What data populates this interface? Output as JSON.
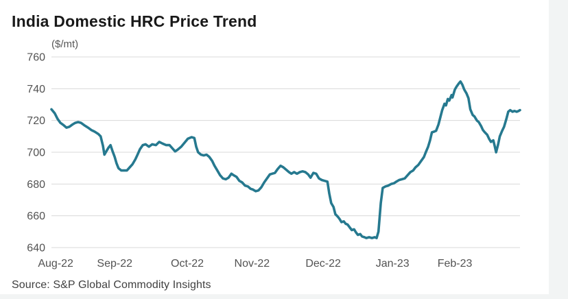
{
  "header": {
    "title": "India Domestic HRC Price Trend",
    "unit_label": "($/mt)"
  },
  "footer": {
    "source": "Source: S&P Global Commodity Insights"
  },
  "colors": {
    "line": "#26798F",
    "grid": "#d8d8d8",
    "title_text": "#191919",
    "axis_text": "#525252",
    "background": "#ffffff",
    "page_margin": "#f2f4f4"
  },
  "chart_data": {
    "type": "line",
    "title": "India Domestic HRC Price Trend",
    "ylabel": "($/mt)",
    "ylim": [
      640,
      760
    ],
    "ytick_interval": 20,
    "yticks": [
      760,
      740,
      720,
      700,
      680,
      660,
      640
    ],
    "grid": "horizontal-only",
    "legend": "none",
    "line_color": "#26798F",
    "x_unit": "fraction-of-axis",
    "xticks": [
      {
        "label": "Aug-22",
        "pos": 0.009
      },
      {
        "label": "Sep-22",
        "pos": 0.135
      },
      {
        "label": "Oct-22",
        "pos": 0.29
      },
      {
        "label": "Nov-22",
        "pos": 0.428
      },
      {
        "label": "Dec-22",
        "pos": 0.58
      },
      {
        "label": "Jan-23",
        "pos": 0.728
      },
      {
        "label": "Feb-23",
        "pos": 0.861
      }
    ],
    "series": [
      {
        "name": "India domestic HRC price ($/mt)",
        "points": [
          [
            0.0,
            727
          ],
          [
            0.007,
            724.5
          ],
          [
            0.013,
            721
          ],
          [
            0.019,
            718.5
          ],
          [
            0.026,
            717
          ],
          [
            0.032,
            715.5
          ],
          [
            0.038,
            716
          ],
          [
            0.045,
            717.5
          ],
          [
            0.051,
            718.5
          ],
          [
            0.057,
            719
          ],
          [
            0.063,
            718.5
          ],
          [
            0.07,
            717
          ],
          [
            0.078,
            715.5
          ],
          [
            0.085,
            714
          ],
          [
            0.092,
            713
          ],
          [
            0.1,
            711.5
          ],
          [
            0.105,
            710
          ],
          [
            0.11,
            704
          ],
          [
            0.113,
            698.5
          ],
          [
            0.117,
            700.5
          ],
          [
            0.122,
            703
          ],
          [
            0.126,
            704.5
          ],
          [
            0.13,
            701
          ],
          [
            0.135,
            697
          ],
          [
            0.139,
            693
          ],
          [
            0.143,
            690
          ],
          [
            0.149,
            688.5
          ],
          [
            0.155,
            688.5
          ],
          [
            0.161,
            688.5
          ],
          [
            0.167,
            690.5
          ],
          [
            0.173,
            692.5
          ],
          [
            0.179,
            695.5
          ],
          [
            0.183,
            698
          ],
          [
            0.189,
            702
          ],
          [
            0.195,
            704.5
          ],
          [
            0.201,
            705
          ],
          [
            0.208,
            703.5
          ],
          [
            0.215,
            705
          ],
          [
            0.223,
            704.5
          ],
          [
            0.23,
            706.5
          ],
          [
            0.237,
            705.5
          ],
          [
            0.245,
            704.5
          ],
          [
            0.252,
            704.5
          ],
          [
            0.258,
            702.5
          ],
          [
            0.264,
            700.5
          ],
          [
            0.269,
            701.5
          ],
          [
            0.277,
            703.5
          ],
          [
            0.284,
            706
          ],
          [
            0.291,
            708.5
          ],
          [
            0.299,
            709.5
          ],
          [
            0.305,
            709
          ],
          [
            0.309,
            703.5
          ],
          [
            0.313,
            700
          ],
          [
            0.319,
            698.5
          ],
          [
            0.325,
            698
          ],
          [
            0.331,
            698.5
          ],
          [
            0.337,
            697
          ],
          [
            0.343,
            694.5
          ],
          [
            0.348,
            691.5
          ],
          [
            0.354,
            688.5
          ],
          [
            0.36,
            685.5
          ],
          [
            0.366,
            683.5
          ],
          [
            0.372,
            683
          ],
          [
            0.378,
            684
          ],
          [
            0.384,
            686.5
          ],
          [
            0.389,
            685.5
          ],
          [
            0.395,
            684.5
          ],
          [
            0.401,
            682
          ],
          [
            0.407,
            681
          ],
          [
            0.413,
            679
          ],
          [
            0.419,
            678.5
          ],
          [
            0.425,
            677
          ],
          [
            0.43,
            676.5
          ],
          [
            0.436,
            675.5
          ],
          [
            0.442,
            676
          ],
          [
            0.448,
            678
          ],
          [
            0.454,
            681
          ],
          [
            0.46,
            683.5
          ],
          [
            0.466,
            686
          ],
          [
            0.471,
            686.5
          ],
          [
            0.477,
            687
          ],
          [
            0.483,
            689.5
          ],
          [
            0.489,
            691.5
          ],
          [
            0.495,
            690.5
          ],
          [
            0.501,
            689
          ],
          [
            0.507,
            687.5
          ],
          [
            0.512,
            686.5
          ],
          [
            0.518,
            687.5
          ],
          [
            0.524,
            686.5
          ],
          [
            0.53,
            687.5
          ],
          [
            0.536,
            688
          ],
          [
            0.542,
            687.5
          ],
          [
            0.548,
            686
          ],
          [
            0.553,
            684
          ],
          [
            0.559,
            687
          ],
          [
            0.565,
            686.5
          ],
          [
            0.571,
            683.5
          ],
          [
            0.577,
            682.5
          ],
          [
            0.583,
            682
          ],
          [
            0.589,
            681.5
          ],
          [
            0.593,
            674
          ],
          [
            0.597,
            668
          ],
          [
            0.602,
            665.5
          ],
          [
            0.606,
            661
          ],
          [
            0.611,
            659.5
          ],
          [
            0.615,
            658
          ],
          [
            0.619,
            656
          ],
          [
            0.624,
            656.5
          ],
          [
            0.628,
            655
          ],
          [
            0.632,
            654.5
          ],
          [
            0.637,
            652.5
          ],
          [
            0.641,
            651
          ],
          [
            0.646,
            651.5
          ],
          [
            0.65,
            649.5
          ],
          [
            0.654,
            648
          ],
          [
            0.659,
            648.5
          ],
          [
            0.663,
            647
          ],
          [
            0.668,
            646.5
          ],
          [
            0.672,
            646
          ],
          [
            0.678,
            646.5
          ],
          [
            0.684,
            646
          ],
          [
            0.69,
            646.5
          ],
          [
            0.694,
            646
          ],
          [
            0.698,
            650
          ],
          [
            0.703,
            668
          ],
          [
            0.707,
            677.5
          ],
          [
            0.713,
            678.5
          ],
          [
            0.719,
            679
          ],
          [
            0.725,
            680
          ],
          [
            0.731,
            680.5
          ],
          [
            0.736,
            681.5
          ],
          [
            0.742,
            682.5
          ],
          [
            0.748,
            683
          ],
          [
            0.754,
            683.5
          ],
          [
            0.76,
            685.5
          ],
          [
            0.766,
            687.5
          ],
          [
            0.772,
            688.5
          ],
          [
            0.777,
            690.5
          ],
          [
            0.783,
            692
          ],
          [
            0.789,
            694.5
          ],
          [
            0.795,
            697
          ],
          [
            0.799,
            700
          ],
          [
            0.804,
            703.5
          ],
          [
            0.808,
            707.5
          ],
          [
            0.812,
            712.5
          ],
          [
            0.817,
            713
          ],
          [
            0.821,
            713.5
          ],
          [
            0.826,
            717.5
          ],
          [
            0.83,
            722
          ],
          [
            0.834,
            726.5
          ],
          [
            0.839,
            730.5
          ],
          [
            0.842,
            729.5
          ],
          [
            0.846,
            733.5
          ],
          [
            0.849,
            732.5
          ],
          [
            0.854,
            736
          ],
          [
            0.856,
            734.5
          ],
          [
            0.861,
            739.5
          ],
          [
            0.865,
            741.5
          ],
          [
            0.87,
            743.5
          ],
          [
            0.873,
            744.5
          ],
          [
            0.877,
            742.5
          ],
          [
            0.881,
            739.5
          ],
          [
            0.886,
            737
          ],
          [
            0.89,
            734
          ],
          [
            0.894,
            727
          ],
          [
            0.899,
            723.5
          ],
          [
            0.903,
            722.5
          ],
          [
            0.908,
            720
          ],
          [
            0.912,
            719
          ],
          [
            0.917,
            716.5
          ],
          [
            0.921,
            714
          ],
          [
            0.925,
            712.5
          ],
          [
            0.93,
            711
          ],
          [
            0.934,
            708.5
          ],
          [
            0.938,
            706.5
          ],
          [
            0.943,
            707.5
          ],
          [
            0.946,
            704
          ],
          [
            0.949,
            700
          ],
          [
            0.953,
            704.5
          ],
          [
            0.957,
            710
          ],
          [
            0.962,
            713.5
          ],
          [
            0.966,
            716
          ],
          [
            0.971,
            721
          ],
          [
            0.975,
            725.5
          ],
          [
            0.979,
            726.5
          ],
          [
            0.984,
            725.5
          ],
          [
            0.988,
            726
          ],
          [
            0.993,
            725.5
          ],
          [
            0.997,
            726
          ],
          [
            1.0,
            726.5
          ]
        ]
      }
    ]
  }
}
